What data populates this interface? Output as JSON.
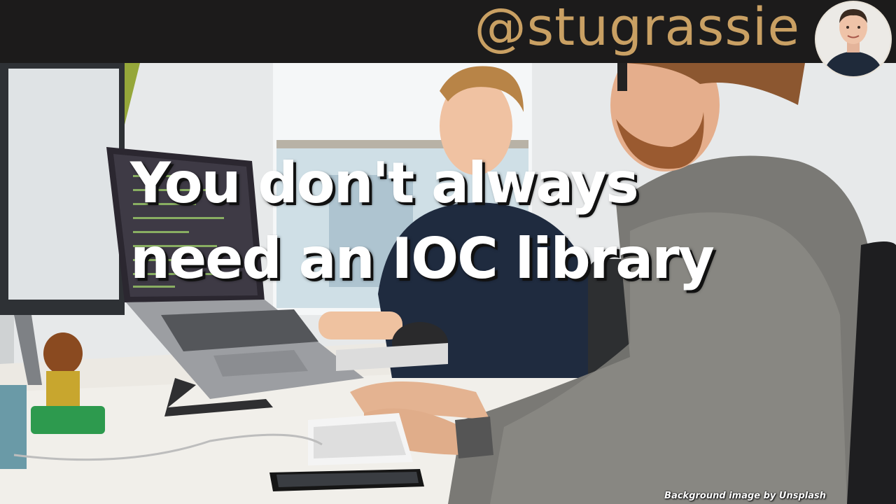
{
  "header": {
    "handle": "@stugrassie",
    "avatar_icon": "profile-photo"
  },
  "slide": {
    "title_line_1": "You don't always",
    "title_line_2": "need an IOC library"
  },
  "footer": {
    "credit": "Background image by Unsplash"
  },
  "colors": {
    "bar_background": "#1c1b1b",
    "handle_color": "#c9a063",
    "title_color": "#ffffff"
  }
}
